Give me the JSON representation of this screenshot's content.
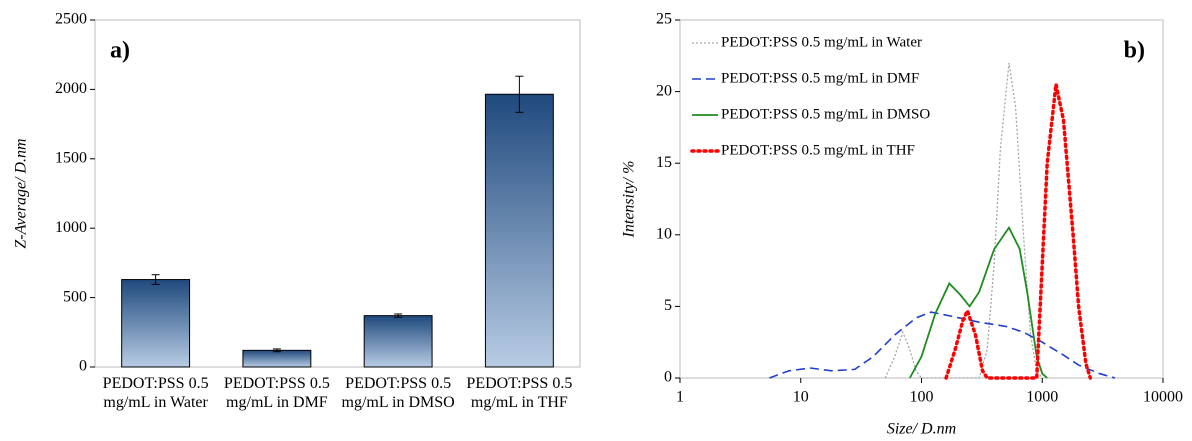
{
  "chart_data": [
    {
      "type": "bar",
      "label": "a)",
      "ylabel": "Z-Average/ D.nm",
      "categories": [
        "PEDOT:PSS 0.5 mg/mL in Water",
        "PEDOT:PSS 0.5 mg/mL in DMF",
        "PEDOT:PSS 0.5 mg/mL in DMSO",
        "PEDOT:PSS 0.5 mg/mL in THF"
      ],
      "values": [
        630,
        120,
        370,
        1965
      ],
      "errors": [
        35,
        10,
        12,
        130
      ],
      "gradient": [
        "#1f497d",
        "#b8cce4"
      ],
      "ylim": [
        0,
        2500
      ],
      "yticks": [
        0,
        500,
        1000,
        1500,
        2000,
        2500
      ]
    },
    {
      "type": "line",
      "label": "b)",
      "xlabel": "Size/ D.nm",
      "ylabel": "Intensity/ %",
      "xscale": "log",
      "xlim": [
        1,
        10000
      ],
      "xticks": [
        1,
        10,
        100,
        1000,
        10000
      ],
      "ylim": [
        0,
        25
      ],
      "yticks": [
        0,
        5,
        10,
        15,
        20,
        25
      ],
      "series": [
        {
          "name": "PEDOT:PSS 0.5 mg/mL in Water",
          "color": "#a6a6a6",
          "dash": "2 2",
          "width": 1.3,
          "x": [
            50,
            60,
            70,
            80,
            90,
            100,
            300,
            350,
            400,
            450,
            530,
            600,
            700,
            800,
            900,
            1000
          ],
          "values": [
            0,
            1.5,
            3.2,
            2,
            0.5,
            0,
            0,
            2,
            8,
            16,
            22,
            19,
            10,
            3,
            0.5,
            0
          ]
        },
        {
          "name": "PEDOT:PSS 0.5 mg/mL in DMF",
          "color": "#1f3fd0",
          "dash": "9 5",
          "width": 1.6,
          "x": [
            5.5,
            8,
            12,
            18,
            28,
            40,
            60,
            90,
            120,
            180,
            300,
            500,
            700,
            1000,
            1500,
            2000,
            3000,
            4000
          ],
          "values": [
            0,
            0.5,
            0.7,
            0.5,
            0.6,
            1.5,
            3,
            4.2,
            4.6,
            4.3,
            3.9,
            3.6,
            3.2,
            2.5,
            1.6,
            0.9,
            0.3,
            0
          ]
        },
        {
          "name": "PEDOT:PSS 0.5 mg/mL in DMSO",
          "color": "#1e8c1e",
          "dash": "",
          "width": 1.8,
          "x": [
            80,
            100,
            130,
            170,
            210,
            250,
            300,
            400,
            530,
            650,
            750,
            900,
            1000,
            1100
          ],
          "values": [
            0,
            1.5,
            4.5,
            6.6,
            5.8,
            5,
            6,
            9,
            10.5,
            9,
            6,
            1.5,
            0.3,
            0
          ]
        },
        {
          "name": "PEDOT:PSS 0.5 mg/mL in THF",
          "color": "#ff0000",
          "dash": "2 4",
          "width": 3.5,
          "x": [
            160,
            190,
            220,
            240,
            280,
            320,
            350,
            900,
            1000,
            1100,
            1300,
            1500,
            1800,
            2000,
            2300,
            2500
          ],
          "values": [
            0,
            2,
            4,
            4.7,
            3,
            0.5,
            0,
            0,
            8,
            15,
            20.5,
            18,
            10,
            5,
            1,
            0
          ]
        }
      ]
    }
  ]
}
